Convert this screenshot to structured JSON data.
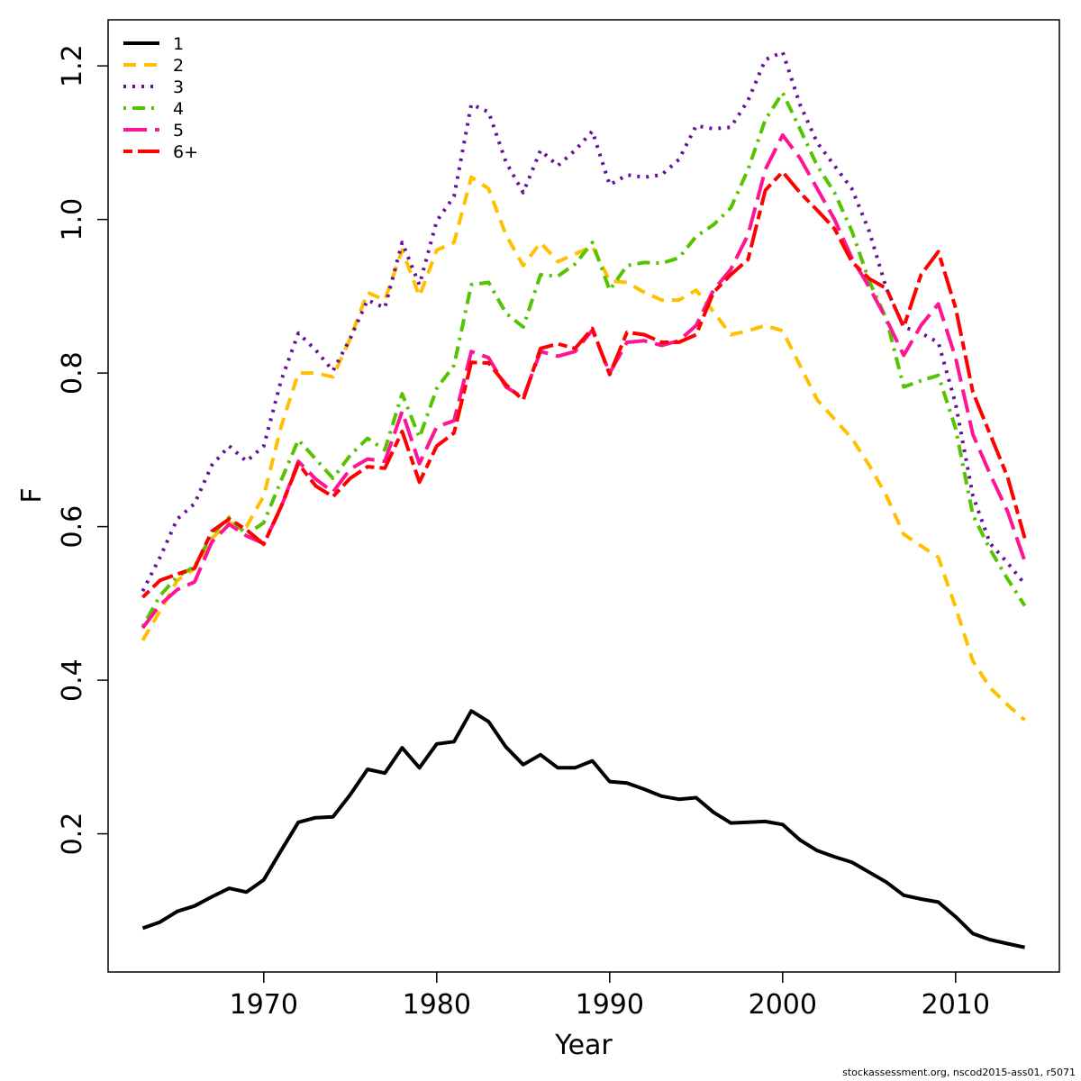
{
  "footer": "stockassessment.org, nscod2015-ass01, r5071",
  "chart_data": {
    "type": "line",
    "title": "",
    "xlabel": "Year",
    "ylabel": "F",
    "xlim": [
      1961,
      2016
    ],
    "ylim": [
      0.02,
      1.26
    ],
    "x_ticks": [
      1970,
      1980,
      1990,
      2000,
      2010
    ],
    "y_ticks": [
      0.2,
      0.4,
      0.6,
      0.8,
      1.0,
      1.2
    ],
    "y_tick_labels": [
      "0.2",
      "0.4",
      "0.6",
      "0.8",
      "1.0",
      "1.2"
    ],
    "grid": false,
    "legend_position": "top-left",
    "x": [
      1963,
      1964,
      1965,
      1966,
      1967,
      1968,
      1969,
      1970,
      1971,
      1972,
      1973,
      1974,
      1975,
      1976,
      1977,
      1978,
      1979,
      1980,
      1981,
      1982,
      1983,
      1984,
      1985,
      1986,
      1987,
      1988,
      1989,
      1990,
      1991,
      1992,
      1993,
      1994,
      1995,
      1996,
      1997,
      1998,
      1999,
      2000,
      2001,
      2002,
      2003,
      2004,
      2005,
      2006,
      2007,
      2008,
      2009,
      2010,
      2011,
      2012,
      2013,
      2014
    ],
    "series": [
      {
        "name": "1",
        "color": "#000000",
        "dash": "solid",
        "values": [
          0.077,
          0.085,
          0.099,
          0.106,
          0.118,
          0.129,
          0.124,
          0.14,
          0.178,
          0.215,
          0.221,
          0.222,
          0.251,
          0.284,
          0.279,
          0.312,
          0.286,
          0.317,
          0.32,
          0.36,
          0.346,
          0.313,
          0.29,
          0.303,
          0.286,
          0.286,
          0.295,
          0.268,
          0.266,
          0.258,
          0.249,
          0.245,
          0.247,
          0.228,
          0.214,
          0.215,
          0.216,
          0.212,
          0.192,
          0.178,
          0.17,
          0.163,
          0.15,
          0.137,
          0.12,
          0.115,
          0.111,
          0.092,
          0.07,
          0.062,
          0.057,
          0.052
        ]
      },
      {
        "name": "2",
        "color": "#FFC000",
        "dash": "dashed",
        "values": [
          0.452,
          0.49,
          0.53,
          0.545,
          0.585,
          0.605,
          0.6,
          0.64,
          0.73,
          0.8,
          0.8,
          0.795,
          0.845,
          0.905,
          0.895,
          0.96,
          0.9,
          0.96,
          0.97,
          1.055,
          1.04,
          0.98,
          0.94,
          0.97,
          0.945,
          0.955,
          0.965,
          0.92,
          0.918,
          0.905,
          0.895,
          0.895,
          0.908,
          0.88,
          0.85,
          0.855,
          0.862,
          0.855,
          0.81,
          0.765,
          0.74,
          0.715,
          0.68,
          0.64,
          0.59,
          0.575,
          0.56,
          0.495,
          0.425,
          0.39,
          0.368,
          0.348
        ]
      },
      {
        "name": "3",
        "color": "#66119A",
        "dash": "dotted",
        "values": [
          0.516,
          0.56,
          0.61,
          0.63,
          0.68,
          0.705,
          0.685,
          0.705,
          0.79,
          0.852,
          0.83,
          0.803,
          0.845,
          0.895,
          0.885,
          0.97,
          0.915,
          0.998,
          1.03,
          1.15,
          1.14,
          1.075,
          1.035,
          1.09,
          1.07,
          1.09,
          1.115,
          1.045,
          1.058,
          1.055,
          1.058,
          1.078,
          1.122,
          1.118,
          1.12,
          1.155,
          1.208,
          1.218,
          1.15,
          1.1,
          1.07,
          1.04,
          0.985,
          0.91,
          0.86,
          0.852,
          0.84,
          0.76,
          0.64,
          0.578,
          0.553,
          0.525
        ]
      },
      {
        "name": "4",
        "color": "#55C400",
        "dash": "dotdash",
        "values": [
          0.47,
          0.51,
          0.535,
          0.548,
          0.59,
          0.612,
          0.59,
          0.605,
          0.66,
          0.713,
          0.688,
          0.663,
          0.693,
          0.715,
          0.7,
          0.773,
          0.716,
          0.78,
          0.81,
          0.915,
          0.918,
          0.878,
          0.86,
          0.928,
          0.926,
          0.942,
          0.97,
          0.908,
          0.94,
          0.944,
          0.943,
          0.95,
          0.978,
          0.993,
          1.015,
          1.065,
          1.13,
          1.165,
          1.118,
          1.07,
          1.035,
          0.985,
          0.92,
          0.87,
          0.782,
          0.79,
          0.797,
          0.728,
          0.615,
          0.57,
          0.532,
          0.497
        ]
      },
      {
        "name": "5",
        "color": "#FF1493",
        "dash": "longdash",
        "values": [
          0.468,
          0.498,
          0.518,
          0.528,
          0.58,
          0.603,
          0.588,
          0.578,
          0.625,
          0.685,
          0.662,
          0.645,
          0.675,
          0.688,
          0.685,
          0.75,
          0.682,
          0.73,
          0.738,
          0.828,
          0.82,
          0.782,
          0.768,
          0.828,
          0.822,
          0.828,
          0.856,
          0.8,
          0.84,
          0.842,
          0.836,
          0.842,
          0.862,
          0.908,
          0.935,
          0.98,
          1.065,
          1.11,
          1.08,
          1.04,
          1.0,
          0.95,
          0.912,
          0.87,
          0.823,
          0.862,
          0.89,
          0.82,
          0.72,
          0.668,
          0.62,
          0.555
        ]
      },
      {
        "name": "6+",
        "color": "#FF0000",
        "dash": "twodash",
        "values": [
          0.508,
          0.53,
          0.538,
          0.546,
          0.594,
          0.61,
          0.596,
          0.577,
          0.626,
          0.682,
          0.653,
          0.639,
          0.663,
          0.678,
          0.676,
          0.724,
          0.658,
          0.705,
          0.722,
          0.814,
          0.813,
          0.785,
          0.765,
          0.832,
          0.838,
          0.832,
          0.858,
          0.798,
          0.853,
          0.85,
          0.84,
          0.84,
          0.85,
          0.905,
          0.928,
          0.948,
          1.038,
          1.062,
          1.035,
          1.012,
          0.988,
          0.945,
          0.923,
          0.91,
          0.86,
          0.928,
          0.958,
          0.885,
          0.775,
          0.72,
          0.665,
          0.585
        ]
      }
    ]
  }
}
